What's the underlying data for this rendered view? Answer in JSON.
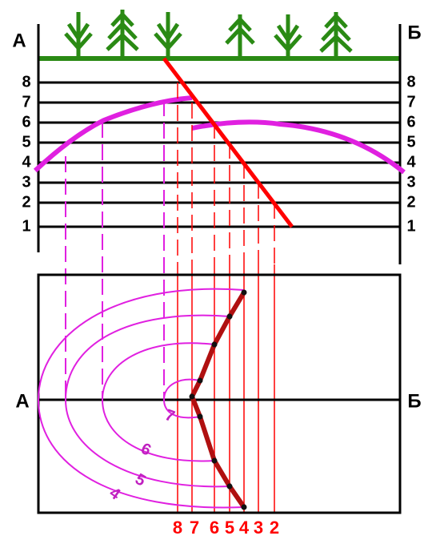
{
  "section": {
    "left_label": "А",
    "right_label": "Б",
    "levels": [
      "8",
      "7",
      "6",
      "5",
      "4",
      "3",
      "2",
      "1"
    ]
  },
  "plan": {
    "left_label": "А",
    "right_label": "Б",
    "contour_labels": [
      "7",
      "6",
      "5",
      "4"
    ],
    "line_labels": [
      "8",
      "7",
      "6",
      "5",
      "4",
      "3",
      "2"
    ]
  }
}
